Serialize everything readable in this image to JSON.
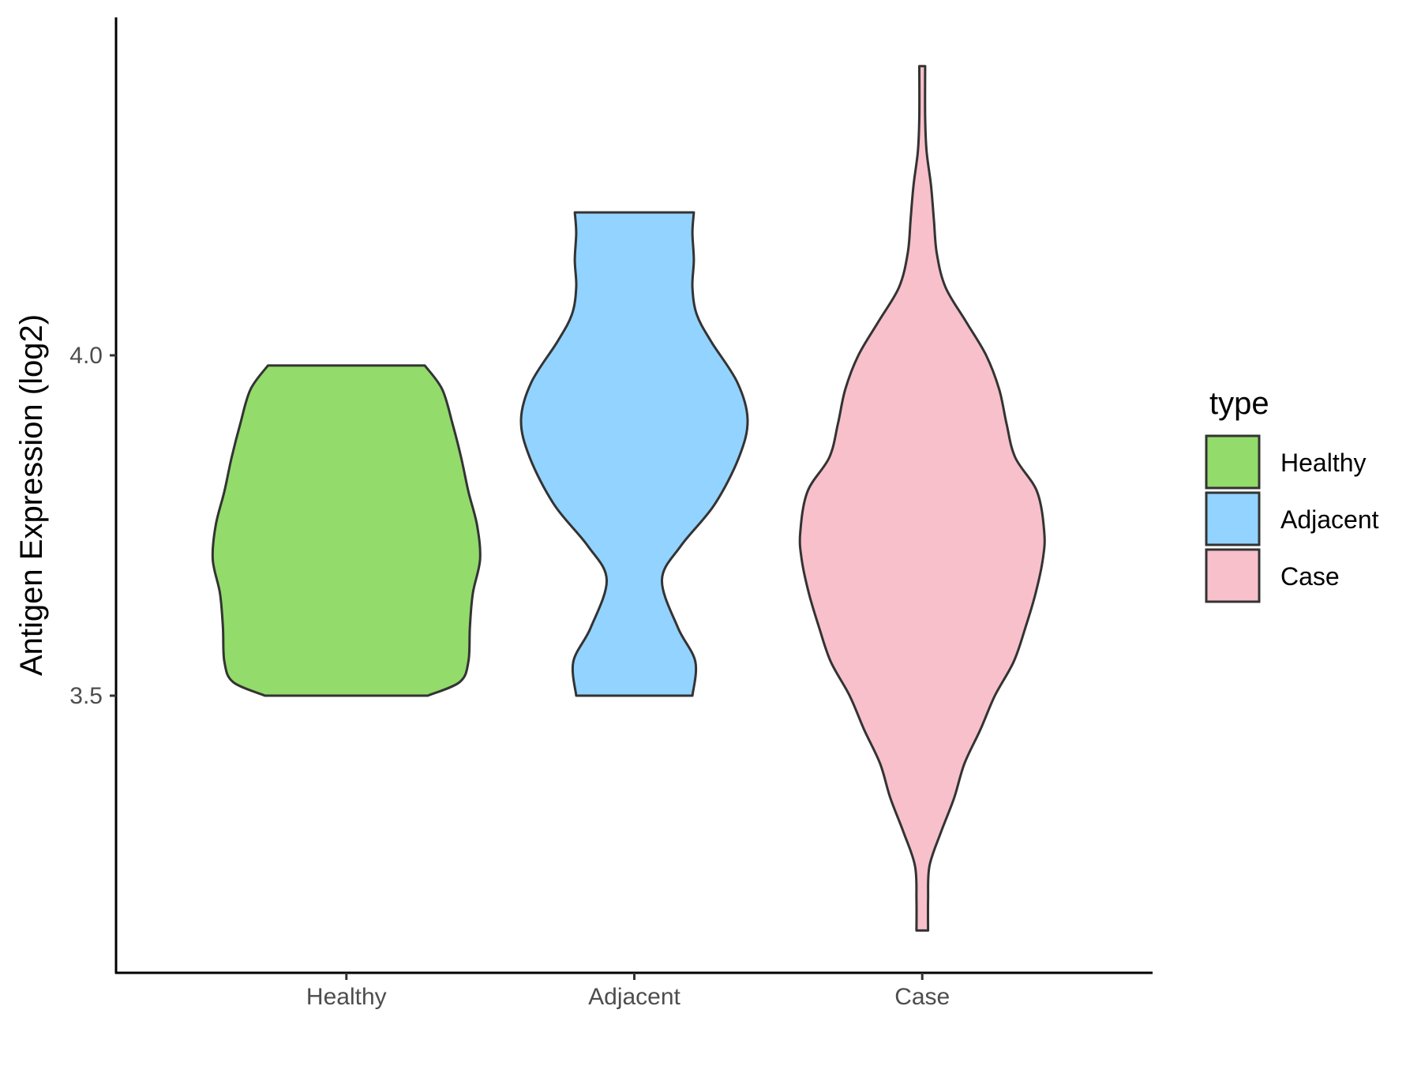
{
  "chart_data": {
    "type": "violin",
    "title": "",
    "xlabel": "",
    "ylabel": "Antigen Expression (log2)",
    "ylim": [
      3.1,
      4.5
    ],
    "yticks": [
      3.5,
      4.0
    ],
    "ytick_labels": [
      "3.5",
      "4.0"
    ],
    "categories": [
      "Healthy",
      "Adjacent",
      "Case"
    ],
    "grid": false,
    "legend": {
      "title": "type",
      "position": "right",
      "entries": [
        "Healthy",
        "Adjacent",
        "Case"
      ]
    },
    "series": [
      {
        "name": "Healthy",
        "color": "#93db6b",
        "y_min": 3.5,
        "y_max": 3.985,
        "density_profile": [
          [
            3.5,
            0.56
          ],
          [
            3.52,
            0.78
          ],
          [
            3.55,
            0.84
          ],
          [
            3.6,
            0.85
          ],
          [
            3.65,
            0.87
          ],
          [
            3.7,
            0.92
          ],
          [
            3.75,
            0.9
          ],
          [
            3.8,
            0.84
          ],
          [
            3.85,
            0.79
          ],
          [
            3.9,
            0.73
          ],
          [
            3.95,
            0.66
          ],
          [
            3.985,
            0.54
          ]
        ]
      },
      {
        "name": "Adjacent",
        "color": "#93d3ff",
        "y_min": 3.5,
        "y_max": 4.21,
        "density_profile": [
          [
            3.5,
            0.4
          ],
          [
            3.55,
            0.42
          ],
          [
            3.6,
            0.3
          ],
          [
            3.67,
            0.19
          ],
          [
            3.72,
            0.32
          ],
          [
            3.78,
            0.55
          ],
          [
            3.85,
            0.72
          ],
          [
            3.905,
            0.78
          ],
          [
            3.96,
            0.71
          ],
          [
            4.02,
            0.53
          ],
          [
            4.06,
            0.43
          ],
          [
            4.1,
            0.4
          ],
          [
            4.14,
            0.41
          ],
          [
            4.18,
            0.4
          ],
          [
            4.21,
            0.41
          ]
        ]
      },
      {
        "name": "Case",
        "color": "#f7c0cb",
        "y_min": 3.155,
        "y_max": 4.425,
        "density_profile": [
          [
            3.155,
            0.04
          ],
          [
            3.2,
            0.04
          ],
          [
            3.25,
            0.05
          ],
          [
            3.3,
            0.13
          ],
          [
            3.35,
            0.22
          ],
          [
            3.4,
            0.29
          ],
          [
            3.45,
            0.4
          ],
          [
            3.5,
            0.5
          ],
          [
            3.55,
            0.63
          ],
          [
            3.6,
            0.71
          ],
          [
            3.65,
            0.78
          ],
          [
            3.7,
            0.83
          ],
          [
            3.74,
            0.84
          ],
          [
            3.8,
            0.79
          ],
          [
            3.85,
            0.64
          ],
          [
            3.9,
            0.58
          ],
          [
            3.95,
            0.53
          ],
          [
            4.0,
            0.44
          ],
          [
            4.05,
            0.3
          ],
          [
            4.1,
            0.16
          ],
          [
            4.15,
            0.1
          ],
          [
            4.2,
            0.08
          ],
          [
            4.25,
            0.06
          ],
          [
            4.3,
            0.03
          ],
          [
            4.35,
            0.02
          ],
          [
            4.425,
            0.02
          ]
        ]
      }
    ]
  }
}
